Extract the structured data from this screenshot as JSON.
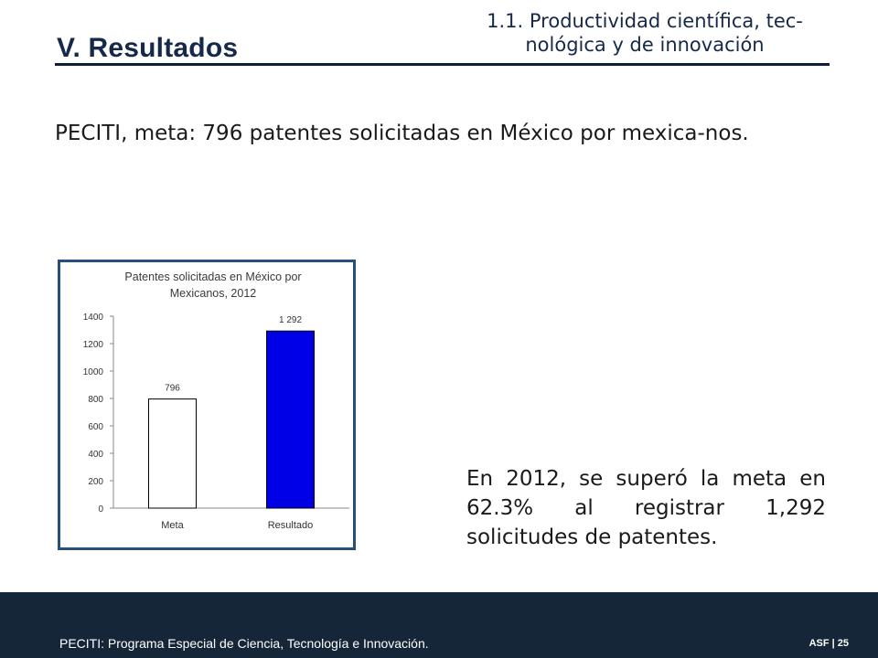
{
  "header": {
    "section_title": "V. Resultados",
    "subtitle_line1": "1.1. Productividad científica, tec-",
    "subtitle_line2": "nológica y de innovación"
  },
  "body": {
    "main_text": "PECITI, meta: 796 patentes solicitadas en México por mexica-nos.",
    "side_text": "En 2012, se superó la meta en 62.3% al registrar 1,292 solicitudes de patentes."
  },
  "footer": {
    "note": "PECITI: Programa Especial de Ciencia, Tecnología e Innovación.",
    "page": "ASF | 25"
  },
  "colors": {
    "heading": "#16294a",
    "chart_border": "#274f7c",
    "bar_meta": "#ffffff",
    "bar_resultado": "#0000e6",
    "footer_bg": "#142638"
  },
  "chart_data": {
    "type": "bar",
    "title_line1": "Patentes solicitadas en México por",
    "title_line2": "Mexicanos, 2012",
    "categories": [
      "Meta",
      "Resultado"
    ],
    "values": [
      796,
      1292
    ],
    "value_labels": [
      "796",
      "1 292"
    ],
    "ylim": [
      0,
      1400
    ],
    "yticks": [
      0,
      200,
      400,
      600,
      800,
      1000,
      1200,
      1400
    ],
    "xlabel": "",
    "ylabel": "",
    "grid": false,
    "legend": "none"
  }
}
